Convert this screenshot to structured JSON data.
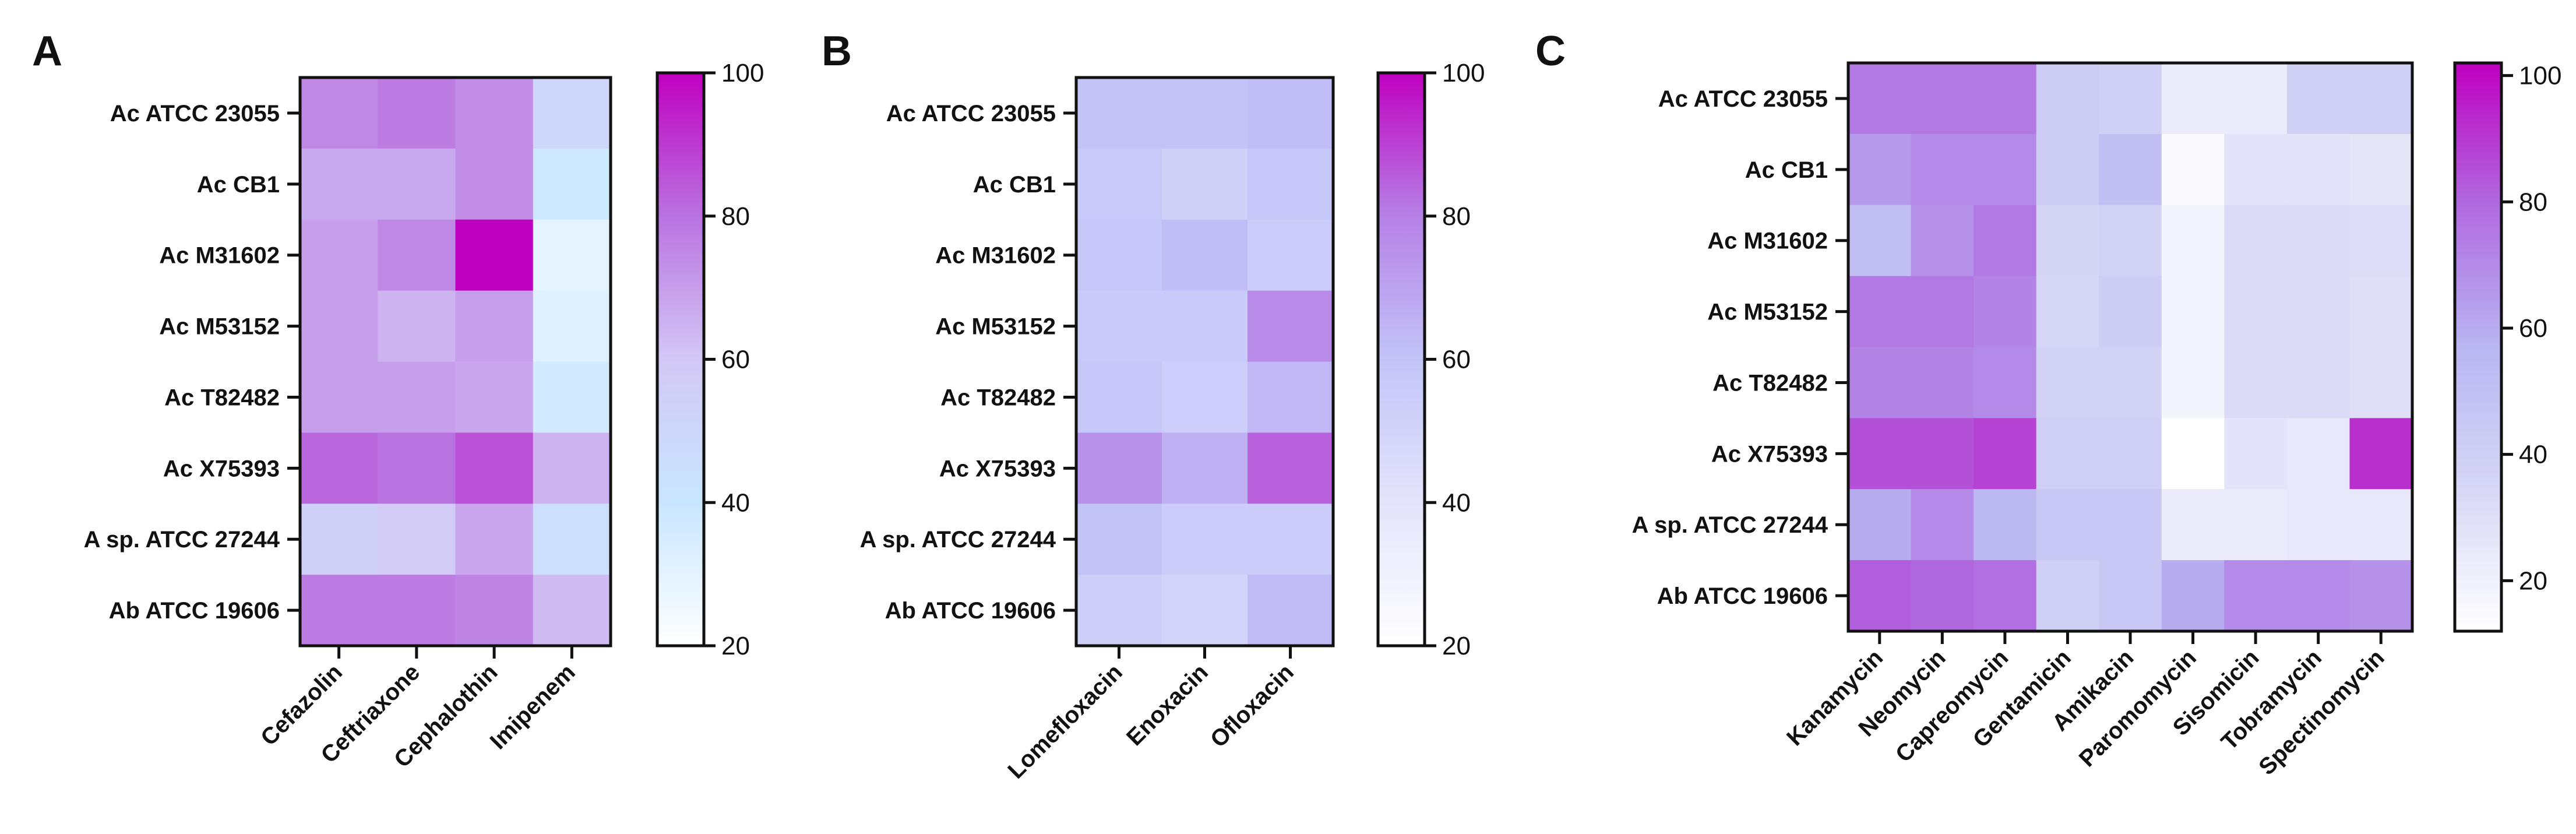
{
  "figure": {
    "panels": [
      "A",
      "B",
      "C"
    ]
  },
  "chart_data": [
    {
      "type": "heatmap",
      "panel": "A",
      "rows": [
        "Ac ATCC 23055",
        "Ac CB1",
        "Ac M31602",
        "Ac M53152",
        "Ac T82482",
        "Ac X75393",
        "A sp. ATCC 27244",
        "Ab ATCC 19606"
      ],
      "columns": [
        "Cefazolin",
        "Ceftriaxone",
        "Cephalothin",
        "Imipenem"
      ],
      "values": [
        [
          75,
          78,
          74,
          50
        ],
        [
          67,
          67,
          74,
          38
        ],
        [
          70,
          75,
          100,
          30
        ],
        [
          70,
          65,
          70,
          32
        ],
        [
          70,
          70,
          68,
          37
        ],
        [
          82,
          80,
          86,
          65
        ],
        [
          54,
          58,
          68,
          45
        ],
        [
          78,
          78,
          76,
          63
        ]
      ],
      "colorbar": {
        "min": 20,
        "max": 100,
        "ticks": [
          100,
          80,
          60,
          40,
          20
        ]
      },
      "colormap": [
        "#ffffff",
        "#c9e6ff",
        "#d3c8f5",
        "#b973e0",
        "#c000c0"
      ]
    },
    {
      "type": "heatmap",
      "panel": "B",
      "rows": [
        "Ac ATCC 23055",
        "Ac CB1",
        "Ac M31602",
        "Ac M53152",
        "Ac T82482",
        "Ac X75393",
        "A sp. ATCC 27244",
        "Ab ATCC 19606"
      ],
      "columns": [
        "Lomefloxacin",
        "Enoxacin",
        "Ofloxacin"
      ],
      "values": [
        [
          60,
          60,
          62
        ],
        [
          57,
          52,
          58
        ],
        [
          58,
          62,
          55
        ],
        [
          56,
          56,
          77
        ],
        [
          58,
          54,
          64
        ],
        [
          75,
          66,
          85
        ],
        [
          60,
          55,
          55
        ],
        [
          53,
          50,
          63
        ]
      ],
      "colorbar": {
        "min": 20,
        "max": 100,
        "ticks": [
          100,
          80,
          60,
          40,
          20
        ]
      },
      "colormap": [
        "#ffffff",
        "#e4e4fb",
        "#c2c4f8",
        "#b681e6",
        "#c000c0"
      ]
    },
    {
      "type": "heatmap",
      "panel": "C",
      "rows": [
        "Ac ATCC 23055",
        "Ac CB1",
        "Ac M31602",
        "Ac M53152",
        "Ac T82482",
        "Ac X75393",
        "A sp. ATCC 27244",
        "Ab ATCC 19606"
      ],
      "columns": [
        "Kanamycin",
        "Neomycin",
        "Capreomycin",
        "Gentamicin",
        "Amikacin",
        "Paromomycin",
        "Sisomicin",
        "Tobramycin",
        "Spectinomycin"
      ],
      "values": [
        [
          75,
          75,
          75,
          42,
          40,
          23,
          23,
          40,
          40
        ],
        [
          65,
          70,
          70,
          42,
          50,
          15,
          28,
          28,
          26
        ],
        [
          50,
          68,
          75,
          36,
          38,
          18,
          32,
          32,
          31
        ],
        [
          75,
          75,
          72,
          35,
          42,
          18,
          32,
          32,
          30
        ],
        [
          72,
          72,
          70,
          38,
          38,
          18,
          32,
          32,
          30
        ],
        [
          85,
          85,
          88,
          40,
          40,
          12,
          28,
          25,
          92
        ],
        [
          60,
          70,
          55,
          45,
          45,
          24,
          24,
          25,
          25
        ],
        [
          82,
          80,
          78,
          40,
          45,
          60,
          70,
          70,
          68
        ]
      ],
      "colorbar": {
        "min": 12,
        "max": 102,
        "ticks": [
          100,
          80,
          60,
          40,
          20
        ]
      },
      "colormap": [
        "#ffffff",
        "#d7d7f6",
        "#b9b6f2",
        "#b06ae0",
        "#c000c0"
      ]
    }
  ]
}
